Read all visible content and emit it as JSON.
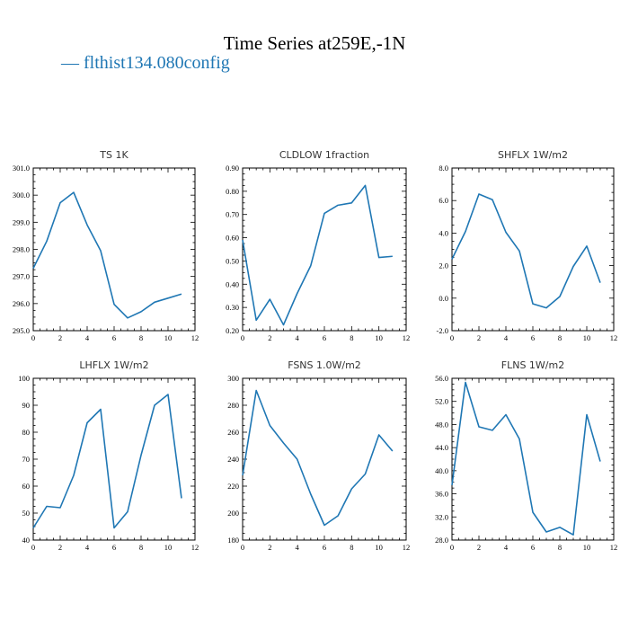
{
  "title": "Time Series at259E,-1N",
  "legend": {
    "label": "— flthist134.080config",
    "color": "#1f77b4"
  },
  "series_color": "#1f77b4",
  "chart_data": [
    {
      "type": "line",
      "title": "TS   1K",
      "xlim": [
        0,
        12
      ],
      "ylim": [
        295.0,
        301.0
      ],
      "xticks": [
        "0",
        "2",
        "4",
        "6",
        "8",
        "10",
        "12"
      ],
      "yticks": [
        "295.0",
        "296.0",
        "297.0",
        "298.0",
        "299.0",
        "300.0",
        "301.0"
      ],
      "x": [
        0,
        1,
        2,
        3,
        4,
        5,
        6,
        7,
        8,
        9,
        10,
        11
      ],
      "values": [
        297.3,
        298.3,
        299.72,
        300.1,
        298.9,
        297.95,
        295.97,
        295.47,
        295.7,
        296.05,
        296.2,
        296.35
      ]
    },
    {
      "type": "line",
      "title": "CLDLOW   1fraction",
      "xlim": [
        0,
        12
      ],
      "ylim": [
        0.2,
        0.9
      ],
      "xticks": [
        "0",
        "2",
        "4",
        "6",
        "8",
        "10",
        "12"
      ],
      "yticks": [
        "0.20",
        "0.30",
        "0.40",
        "0.50",
        "0.60",
        "0.70",
        "0.80",
        "0.90"
      ],
      "x": [
        0,
        1,
        2,
        3,
        4,
        5,
        6,
        7,
        8,
        9,
        10,
        11
      ],
      "values": [
        0.59,
        0.245,
        0.335,
        0.225,
        0.36,
        0.48,
        0.705,
        0.74,
        0.75,
        0.825,
        0.515,
        0.52
      ]
    },
    {
      "type": "line",
      "title": "SHFLX   1W/m2",
      "xlim": [
        0,
        12
      ],
      "ylim": [
        -2.0,
        8.0
      ],
      "xticks": [
        "0",
        "2",
        "4",
        "6",
        "8",
        "10",
        "12"
      ],
      "yticks": [
        "-2.0",
        "0.0",
        "2.0",
        "4.0",
        "6.0",
        "8.0"
      ],
      "x": [
        0,
        1,
        2,
        3,
        4,
        5,
        6,
        7,
        8,
        9,
        10,
        11
      ],
      "values": [
        2.4,
        4.1,
        6.4,
        6.05,
        4.05,
        2.9,
        -0.35,
        -0.6,
        0.1,
        1.95,
        3.2,
        0.95
      ]
    },
    {
      "type": "line",
      "title": "LHFLX   1W/m2",
      "xlim": [
        0,
        12
      ],
      "ylim": [
        40,
        100
      ],
      "xticks": [
        "0",
        "2",
        "4",
        "6",
        "8",
        "10",
        "12"
      ],
      "yticks": [
        "40",
        "50",
        "60",
        "70",
        "80",
        "90",
        "100"
      ],
      "x": [
        0,
        1,
        2,
        3,
        4,
        5,
        6,
        7,
        8,
        9,
        10,
        11
      ],
      "values": [
        44.5,
        52.5,
        52.0,
        64.0,
        83.5,
        88.5,
        44.5,
        50.5,
        71.5,
        90.0,
        94.0,
        55.5
      ]
    },
    {
      "type": "line",
      "title": "FSNS   1.0W/m2",
      "xlim": [
        0,
        12
      ],
      "ylim": [
        180,
        300
      ],
      "xticks": [
        "0",
        "2",
        "4",
        "6",
        "8",
        "10",
        "12"
      ],
      "yticks": [
        "180",
        "200",
        "220",
        "240",
        "260",
        "280",
        "300"
      ],
      "x": [
        0,
        1,
        2,
        3,
        4,
        5,
        6,
        7,
        8,
        9,
        10,
        11
      ],
      "values": [
        228,
        291,
        265,
        252,
        240,
        214,
        191,
        198,
        218,
        229,
        258,
        246
      ]
    },
    {
      "type": "line",
      "title": "FLNS   1W/m2",
      "xlim": [
        0,
        12
      ],
      "ylim": [
        28.0,
        56.0
      ],
      "xticks": [
        "0",
        "2",
        "4",
        "6",
        "8",
        "10",
        "12"
      ],
      "yticks": [
        "28.0",
        "32.0",
        "36.0",
        "40.0",
        "44.0",
        "48.0",
        "52.0",
        "56.0"
      ],
      "x": [
        0,
        1,
        2,
        3,
        4,
        5,
        6,
        7,
        8,
        9,
        10,
        11
      ],
      "values": [
        37.5,
        55.3,
        47.6,
        47.0,
        49.7,
        45.5,
        32.8,
        29.4,
        30.2,
        28.9,
        49.7,
        41.6
      ]
    }
  ]
}
